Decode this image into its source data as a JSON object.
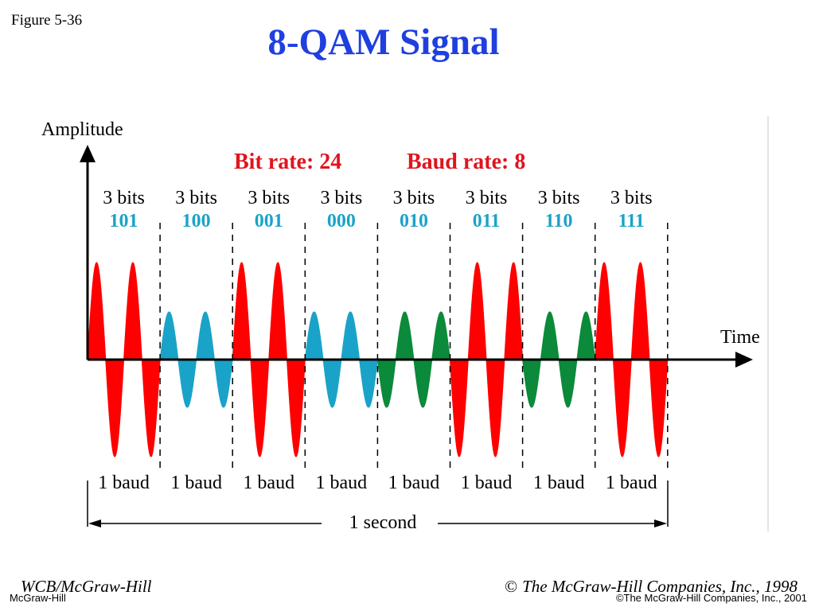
{
  "figure_label": "Figure 5-36",
  "title": "8-QAM Signal",
  "axes": {
    "y_label": "Amplitude",
    "x_label": "Time"
  },
  "rates": {
    "bit_rate": "Bit rate: 24",
    "baud_rate": "Baud rate: 8"
  },
  "segments": [
    {
      "bits_label": "3 bits",
      "code": "101",
      "baud_label": "1 baud",
      "color": "#ff0000",
      "amplitude": "high",
      "phase": 0
    },
    {
      "bits_label": "3 bits",
      "code": "100",
      "baud_label": "1 baud",
      "color": "#1aa3c8",
      "amplitude": "low",
      "phase": 0
    },
    {
      "bits_label": "3 bits",
      "code": "001",
      "baud_label": "1 baud",
      "color": "#ff0000",
      "amplitude": "high",
      "phase": 0
    },
    {
      "bits_label": "3 bits",
      "code": "000",
      "baud_label": "1 baud",
      "color": "#1aa3c8",
      "amplitude": "low",
      "phase": 0
    },
    {
      "bits_label": "3 bits",
      "code": "010",
      "baud_label": "1 baud",
      "color": "#0a8a3a",
      "amplitude": "low",
      "phase": 180
    },
    {
      "bits_label": "3 bits",
      "code": "011",
      "baud_label": "1 baud",
      "color": "#ff0000",
      "amplitude": "high",
      "phase": 180
    },
    {
      "bits_label": "3 bits",
      "code": "110",
      "baud_label": "1 baud",
      "color": "#0a8a3a",
      "amplitude": "low",
      "phase": 180
    },
    {
      "bits_label": "3 bits",
      "code": "111",
      "baud_label": "1 baud",
      "color": "#ff0000",
      "amplitude": "high",
      "phase": 0
    }
  ],
  "duration_label": "1 second",
  "colors": {
    "title": "#1f3fe0",
    "rates": "#e0141e",
    "codes": "#1aa3c8"
  },
  "footer": {
    "left": "WCB/McGraw-Hill",
    "right_symbol": "©",
    "right": "The McGraw-Hill Companies, Inc., 1998",
    "small_left": "McGraw-Hill",
    "small_right": "©The McGraw-Hill Companies, Inc., 2001"
  }
}
